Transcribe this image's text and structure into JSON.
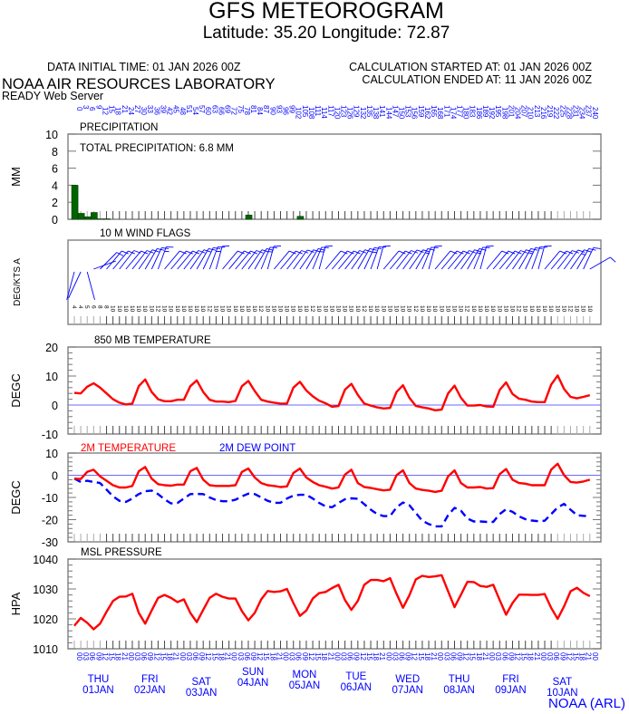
{
  "header": {
    "title": "GFS METEOROGRAM",
    "location": "Latitude: 35.20 Longitude:  72.87",
    "init_time": "DATA INITIAL TIME: 01 JAN 2026 00Z",
    "calc_started": "CALCULATION STARTED AT: 01 JAN 2026 00Z",
    "calc_ended": "CALCULATION ENDED AT: 11 JAN 2026 00Z",
    "org": "NOAA AIR RESOURCES LABORATORY",
    "server": "READY Web Server",
    "footer": "NOAA (ARL)"
  },
  "colors": {
    "red": "#ff0000",
    "blue": "#0000ff",
    "green": "#006400",
    "axis": "#555555",
    "zero_line": "#6a6aff"
  },
  "forecast_hours": [
    0,
    3,
    6,
    9,
    12,
    15,
    18,
    21,
    24,
    27,
    30,
    33,
    36,
    39,
    42,
    45,
    48,
    51,
    54,
    57,
    60,
    63,
    66,
    69,
    72,
    75,
    78,
    81,
    84,
    87,
    90,
    93,
    96,
    99,
    102,
    105,
    108,
    111,
    114,
    117,
    120,
    123,
    126,
    129,
    132,
    135,
    138,
    141,
    144,
    147,
    150,
    153,
    156,
    159,
    162,
    165,
    168,
    171,
    174,
    177,
    180,
    183,
    186,
    189,
    192,
    195,
    198,
    201,
    204,
    207,
    210,
    213,
    216,
    219,
    222,
    225,
    228,
    231,
    234,
    237,
    240
  ],
  "hour_of_day_cycle": [
    "00",
    "03",
    "06",
    "09",
    "12",
    "15",
    "18",
    "21"
  ],
  "days": [
    {
      "dow": "THU",
      "date": "01JAN"
    },
    {
      "dow": "FRI",
      "date": "02JAN"
    },
    {
      "dow": "SAT",
      "date": "03JAN"
    },
    {
      "dow": "SUN",
      "date": "04JAN"
    },
    {
      "dow": "MON",
      "date": "05JAN"
    },
    {
      "dow": "TUE",
      "date": "06JAN"
    },
    {
      "dow": "WED",
      "date": "07JAN"
    },
    {
      "dow": "THU",
      "date": "08JAN"
    },
    {
      "dow": "FRI",
      "date": "09JAN"
    },
    {
      "dow": "SAT",
      "date": "10JAN"
    }
  ],
  "chart_data": [
    {
      "type": "bar",
      "title": "PRECIPITATION",
      "annotation": "TOTAL PRECIPITATION:   6.8 MM",
      "ylabel": "MM",
      "ylim": [
        0,
        10
      ],
      "yticks": [
        "0",
        "2",
        "4",
        "6",
        "8",
        "10"
      ],
      "x_units": "forecast hour (interval start)",
      "bars": [
        {
          "hour": 0,
          "mm": 4.0
        },
        {
          "hour": 3,
          "mm": 0.7
        },
        {
          "hour": 6,
          "mm": 0.3
        },
        {
          "hour": 9,
          "mm": 0.8
        },
        {
          "hour": 12,
          "mm": 0.05
        },
        {
          "hour": 15,
          "mm": 0.05
        },
        {
          "hour": 81,
          "mm": 0.5
        },
        {
          "hour": 105,
          "mm": 0.35
        }
      ]
    },
    {
      "type": "wind_barbs",
      "title": "10 M  WIND FLAGS",
      "ylabel": "DEG/KTS  A",
      "direction_deg": [
        195,
        205,
        165,
        70,
        45,
        40,
        40,
        38,
        40,
        38,
        35,
        30,
        25,
        20,
        40,
        40,
        40,
        38,
        35,
        30,
        25,
        20,
        15,
        40,
        40,
        40,
        38,
        35,
        30,
        22,
        15,
        40,
        40,
        38,
        36,
        35,
        30,
        22,
        15,
        40,
        40,
        40,
        38,
        35,
        30,
        25,
        20,
        15,
        40,
        40,
        38,
        36,
        35,
        30,
        22,
        15,
        40,
        40,
        40,
        38,
        35,
        30,
        22,
        15,
        40,
        40,
        40,
        38,
        35,
        30,
        25,
        20,
        15,
        40,
        40,
        38,
        36,
        35,
        30,
        25,
        60
      ],
      "speed_kt": [
        4,
        4,
        5,
        6,
        8,
        8,
        10,
        10,
        10,
        10,
        10,
        10,
        10,
        12,
        10,
        10,
        10,
        10,
        10,
        10,
        10,
        12,
        10,
        10,
        10,
        10,
        10,
        10,
        10,
        12,
        10,
        10,
        10,
        10,
        10,
        10,
        10,
        12,
        10,
        10,
        10,
        10,
        10,
        10,
        10,
        12,
        10,
        10,
        10,
        10,
        10,
        10,
        10,
        12,
        10,
        10,
        10,
        10,
        10,
        10,
        10,
        12,
        10,
        10,
        10,
        10,
        10,
        10,
        10,
        12,
        10,
        10,
        10,
        10,
        10,
        10,
        10,
        12,
        10,
        10,
        10
      ]
    },
    {
      "type": "line",
      "title": "850 MB  TEMPERATURE",
      "ylabel": "DEGC",
      "ylim": [
        -10,
        20
      ],
      "yticks": [
        "-10",
        "0",
        "10",
        "20"
      ],
      "series": [
        {
          "name": "850 MB TEMPERATURE",
          "color": "#ff0000",
          "values": [
            4.2,
            4.0,
            6.3,
            7.5,
            6.0,
            4.0,
            2.0,
            0.8,
            0.2,
            0.5,
            6.5,
            8.8,
            4.5,
            2.0,
            1.3,
            1.3,
            1.8,
            1.8,
            6.5,
            8.5,
            4.5,
            1.8,
            1.2,
            1.2,
            1.0,
            1.4,
            6.5,
            8.3,
            4.8,
            1.8,
            1.2,
            0.8,
            0.5,
            0.5,
            6.0,
            8.0,
            5.0,
            3.0,
            1.5,
            0.6,
            -0.6,
            -0.3,
            5.3,
            7.3,
            3.5,
            0.5,
            -0.2,
            -0.8,
            -1.2,
            -1.0,
            4.5,
            6.8,
            2.5,
            -0.3,
            -0.8,
            -1.2,
            -1.8,
            -1.6,
            4.0,
            6.7,
            2.5,
            -0.2,
            -0.2,
            0.0,
            -0.5,
            -0.6,
            5.2,
            7.8,
            3.8,
            2.2,
            1.8,
            1.2,
            1.0,
            1.0,
            7.0,
            10.2,
            5.5,
            2.8,
            2.3,
            2.8,
            3.4
          ]
        }
      ]
    },
    {
      "type": "line",
      "title": "",
      "ylabel": "DEGC",
      "ylim": [
        -30,
        10
      ],
      "yticks": [
        "-30",
        "-20",
        "-10",
        "0",
        "10"
      ],
      "series": [
        {
          "name": "2M TEMPERATURE",
          "color": "#ff0000",
          "values": [
            -1.5,
            -1.7,
            1.5,
            2.5,
            -0.5,
            -2.5,
            -4.5,
            -5.5,
            -5.5,
            -4.8,
            1.8,
            3.7,
            -1.5,
            -4.0,
            -4.5,
            -4.7,
            -4.2,
            -4.2,
            1.8,
            3.3,
            -2.0,
            -4.5,
            -4.8,
            -4.8,
            -4.8,
            -4.5,
            1.5,
            3.0,
            -1.0,
            -3.5,
            -4.5,
            -4.8,
            -5.3,
            -5.0,
            1.0,
            3.0,
            -1.0,
            -3.0,
            -4.5,
            -5.2,
            -6.0,
            -5.5,
            0.3,
            2.5,
            -3.5,
            -5.3,
            -5.7,
            -6.3,
            -6.8,
            -6.5,
            0.0,
            2.2,
            -3.5,
            -6.0,
            -6.6,
            -7.0,
            -7.5,
            -7.0,
            -0.5,
            2.2,
            -3.5,
            -5.5,
            -5.5,
            -5.3,
            -6.0,
            -5.8,
            0.5,
            2.8,
            -2.0,
            -3.5,
            -3.8,
            -4.5,
            -4.5,
            -4.5,
            2.5,
            5.2,
            0.0,
            -3.0,
            -3.3,
            -2.8,
            -2.0
          ]
        },
        {
          "name": "2M   DEW POINT",
          "color": "#0000ff",
          "values": [
            -1.5,
            -3.0,
            -2.5,
            -3.0,
            -3.5,
            -6.5,
            -9.5,
            -11.5,
            -12.0,
            -10.5,
            -8.5,
            -7.2,
            -6.9,
            -8.5,
            -10.8,
            -12.7,
            -12.5,
            -10.5,
            -8.5,
            -8.4,
            -8.5,
            -10.0,
            -11.2,
            -11.7,
            -11.7,
            -11.0,
            -9.5,
            -8.3,
            -8.5,
            -10.0,
            -11.5,
            -12.4,
            -12.4,
            -10.5,
            -9.2,
            -8.8,
            -8.8,
            -10.5,
            -12.5,
            -14.0,
            -14.4,
            -12.5,
            -10.8,
            -10.4,
            -10.6,
            -13.0,
            -15.5,
            -17.5,
            -18.4,
            -18.4,
            -14.5,
            -12.3,
            -13.5,
            -17.0,
            -20.5,
            -22.0,
            -23.0,
            -23.0,
            -18.0,
            -14.7,
            -16.0,
            -19.5,
            -20.8,
            -20.8,
            -21.0,
            -21.0,
            -17.5,
            -15.3,
            -16.5,
            -18.5,
            -19.8,
            -20.4,
            -20.7,
            -20.5,
            -17.5,
            -14.5,
            -12.9,
            -15.5,
            -18.0,
            -18.3,
            -18.4
          ]
        }
      ]
    },
    {
      "type": "line",
      "title": "MSL PRESSURE",
      "ylabel": "HPA",
      "ylim": [
        1010,
        1040
      ],
      "yticks": [
        "1010",
        "1020",
        "1030",
        "1040"
      ],
      "series": [
        {
          "name": "MSL PRESSURE",
          "color": "#ff0000",
          "values": [
            1017.7,
            1020.3,
            1018.7,
            1016.5,
            1018.4,
            1022.4,
            1026.0,
            1027.4,
            1027.5,
            1028.4,
            1022.0,
            1018.4,
            1022.8,
            1027.0,
            1028.0,
            1027.0,
            1025.6,
            1026.5,
            1022.0,
            1018.9,
            1023.0,
            1027.0,
            1028.4,
            1027.4,
            1026.8,
            1026.8,
            1022.6,
            1019.5,
            1022.0,
            1026.5,
            1029.3,
            1029.0,
            1029.2,
            1030.0,
            1025.3,
            1021.0,
            1022.8,
            1026.8,
            1028.6,
            1029.0,
            1030.3,
            1031.4,
            1026.3,
            1023.0,
            1026.0,
            1031.4,
            1033.0,
            1033.0,
            1032.6,
            1033.6,
            1028.4,
            1023.7,
            1027.9,
            1033.2,
            1034.4,
            1034.0,
            1034.2,
            1034.6,
            1029.2,
            1023.9,
            1028.1,
            1032.4,
            1032.3,
            1031.0,
            1030.7,
            1031.4,
            1026.3,
            1021.4,
            1025.3,
            1028.1,
            1028.1,
            1028.0,
            1028.0,
            1028.3,
            1023.7,
            1020.0,
            1024.2,
            1029.2,
            1030.4,
            1028.7,
            1027.6
          ]
        }
      ]
    }
  ]
}
